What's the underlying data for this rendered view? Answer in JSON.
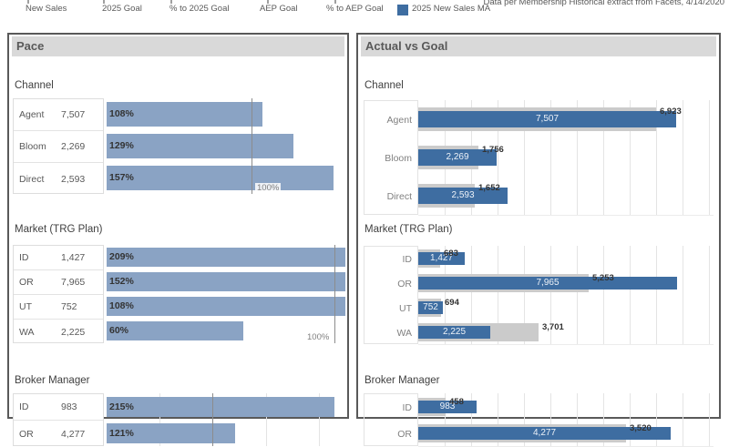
{
  "legend": {
    "items": [
      {
        "label": "New Sales"
      },
      {
        "label": "2025 Goal"
      },
      {
        "label": "% to 2025 Goal"
      },
      {
        "label": "AEP Goal"
      },
      {
        "label": "% to AEP Goal"
      }
    ],
    "series_legend": {
      "label": "2025 New Sales MA",
      "swatch_color": "#3E6DA1"
    },
    "note": "Data per Membership Historical extract from Facets, 4/14/2020"
  },
  "panels": {
    "left_title": "Pace",
    "right_title": "Actual vs Goal"
  },
  "colors": {
    "pace_bar": "#8AA3C4",
    "actual_bar": "#3E6DA1",
    "goal_bar": "#CBCBCB",
    "panel_border": "#595959",
    "header_bg": "#D9D9D9"
  },
  "chart_data": [
    {
      "panel": "Pace",
      "type": "bar",
      "description": "Percent-to-goal horizontal bars with 100% reference line",
      "sections": [
        {
          "title": "Channel",
          "axis_max_pct": 165,
          "ref_pct": 100,
          "ref_label": "100%",
          "ref_label_side": "right",
          "gridlines_pct": [],
          "rows": [
            {
              "label": "Agent",
              "value_label": "7,507",
              "pct": 108,
              "pct_label": "108%"
            },
            {
              "label": "Bloom",
              "value_label": "2,269",
              "pct": 129,
              "pct_label": "129%"
            },
            {
              "label": "Direct",
              "value_label": "2,593",
              "pct": 157,
              "pct_label": "157%"
            }
          ]
        },
        {
          "title": "Market (TRG Plan)",
          "axis_max_pct": 105,
          "ref_pct": 100,
          "ref_label": "100%",
          "ref_label_side": "left",
          "gridlines_pct": [],
          "rows": [
            {
              "label": "ID",
              "value_label": "1,427",
              "pct": 209,
              "pct_label": "209%"
            },
            {
              "label": "OR",
              "value_label": "7,965",
              "pct": 152,
              "pct_label": "152%"
            },
            {
              "label": "UT",
              "value_label": "752",
              "pct": 108,
              "pct_label": "108%"
            },
            {
              "label": "WA",
              "value_label": "2,225",
              "pct": 60,
              "pct_label": "60%"
            }
          ]
        },
        {
          "title": "Broker Manager",
          "axis_max_pct": 225,
          "ref_pct": 100,
          "ref_label": "",
          "ref_label_side": "none",
          "gridlines_pct": [
            50,
            150,
            200
          ],
          "rows": [
            {
              "label": "ID",
              "value_label": "983",
              "pct": 215,
              "pct_label": "215%"
            },
            {
              "label": "OR",
              "value_label": "4,277",
              "pct": 121,
              "pct_label": "121%"
            }
          ]
        }
      ]
    },
    {
      "panel": "Actual vs Goal",
      "type": "bar",
      "description": "Actual (blue) vs goal (gray) overlaid horizontal bars",
      "series": [
        {
          "name": "2025 New Sales MA",
          "color": "#3E6DA1"
        },
        {
          "name": "Goal",
          "color": "#CBCBCB"
        }
      ],
      "sections": [
        {
          "title": "Channel",
          "axis_max": 8580,
          "rows": [
            {
              "label": "Agent",
              "actual": 7507,
              "actual_label": "7,507",
              "goal": 6923,
              "goal_label": "6,923"
            },
            {
              "label": "Bloom",
              "actual": 2269,
              "actual_label": "2,269",
              "goal": 1756,
              "goal_label": "1,756"
            },
            {
              "label": "Direct",
              "actual": 2593,
              "actual_label": "2,593",
              "goal": 1652,
              "goal_label": "1,652"
            }
          ]
        },
        {
          "title": "Market (TRG Plan)",
          "axis_max": 9100,
          "rows": [
            {
              "label": "ID",
              "actual": 1427,
              "actual_label": "1,427",
              "goal": 683,
              "goal_label": "683"
            },
            {
              "label": "OR",
              "actual": 7965,
              "actual_label": "7,965",
              "goal": 5253,
              "goal_label": "5,253"
            },
            {
              "label": "UT",
              "actual": 752,
              "actual_label": "752",
              "goal": 694,
              "goal_label": "694"
            },
            {
              "label": "WA",
              "actual": 2225,
              "actual_label": "2,225",
              "goal": 3701,
              "goal_label": "3,701"
            }
          ]
        },
        {
          "title": "Broker Manager",
          "axis_max": 5000,
          "rows": [
            {
              "label": "ID",
              "actual": 983,
              "actual_label": "983",
              "goal": 458,
              "goal_label": "458"
            },
            {
              "label": "OR",
              "actual": 4277,
              "actual_label": "4,277",
              "goal": 3520,
              "goal_label": "3,520"
            }
          ]
        }
      ]
    }
  ]
}
